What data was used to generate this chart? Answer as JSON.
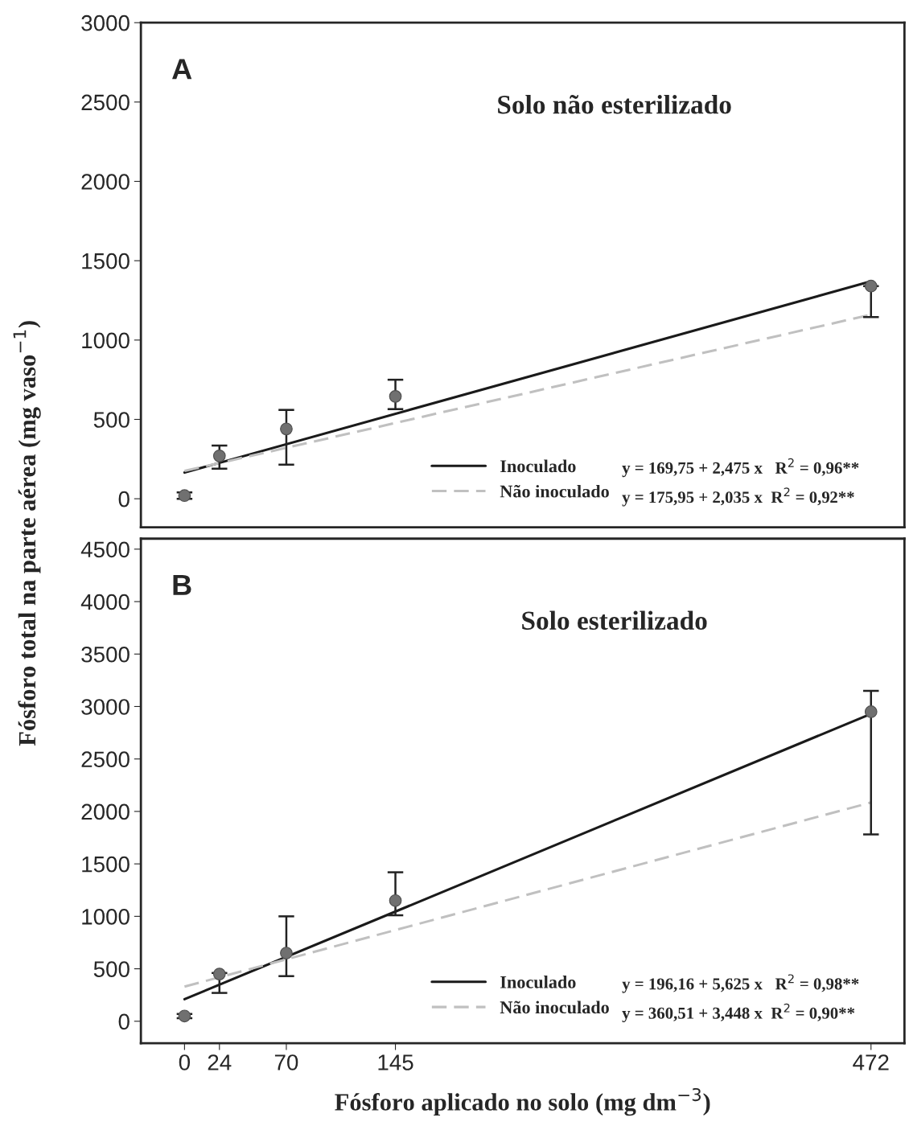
{
  "chart_data": [
    {
      "type": "line",
      "ylabel": "Fósforo total na parte aérea (mg vaso$^{−1}$)",
      "xlim": [
        -30,
        495
      ],
      "ylim": [
        -180,
        3000
      ],
      "yticks": [
        0,
        500,
        1000,
        1500,
        2000,
        2500,
        3000
      ],
      "tick_labels": "y",
      "grid": false,
      "legend": "bottom right",
      "annotations": [
        "A",
        "Solo não esterilizado",
        "y = 169,75 + 2,475 x   R$^{2}$ = 0,96**",
        "y = 175,95 + 2,035 x  R$^{2}$ = 0,92**"
      ],
      "series": [
        {
          "name": "Inoculado",
          "color": "#1a1a1a",
          "line_style": "solid",
          "marker": "none",
          "x": [
            0,
            472
          ],
          "values": [
            165,
            1370
          ]
        },
        {
          "name": "Não inoculado",
          "color": "#c0c0c0",
          "line_style": "dashed",
          "marker": "none",
          "x": [
            0,
            472
          ],
          "values": [
            175,
            1160
          ]
        },
        {
          "type": "scatter",
          "color": "#707070",
          "marker": "circle",
          "x": [
            0,
            24,
            70,
            145,
            472
          ],
          "values": [
            20,
            270,
            440,
            645,
            1340
          ],
          "errors": [
            20,
            [
              190,
              335
            ],
            [
              215,
              560
            ],
            [
              565,
              750
            ],
            [
              1145,
              1340
            ]
          ]
        }
      ]
    },
    {
      "type": "line",
      "xlabel": "Fósforo aplicado no solo (mg dm$^{−3}$)",
      "xlim": [
        -30,
        495
      ],
      "xticks": [
        0,
        24,
        70,
        145,
        472
      ],
      "ylim": [
        -210,
        4600
      ],
      "yticks": [
        0,
        500,
        1000,
        1500,
        2000,
        2500,
        3000,
        3500,
        4000,
        4500
      ],
      "grid": false,
      "legend": "bottom right",
      "annotations": [
        "B",
        "Solo esterilizado",
        "y = 196,16 + 5,625 x   R$^{2}$ = 0,98**",
        "y = 360,51 + 3,448 x  R$^{2}$ = 0,90**"
      ],
      "series": [
        {
          "name": "Inoculado",
          "color": "#1a1a1a",
          "line_style": "solid",
          "marker": "none",
          "x": [
            0,
            472
          ],
          "values": [
            210,
            2930
          ]
        },
        {
          "name": "Não inoculado",
          "color": "#c0c0c0",
          "line_style": "dashed",
          "marker": "none",
          "x": [
            0,
            472
          ],
          "values": [
            330,
            2085
          ]
        },
        {
          "type": "scatter",
          "color": "#707070",
          "marker": "circle",
          "x": [
            0,
            24,
            70,
            145,
            472
          ],
          "values": [
            50,
            450,
            650,
            1150,
            2950
          ],
          "errors": [
            20,
            [
              270,
              460
            ],
            [
              430,
              1000
            ],
            [
              1010,
              1420
            ],
            [
              1780,
              3150
            ]
          ]
        }
      ]
    }
  ]
}
